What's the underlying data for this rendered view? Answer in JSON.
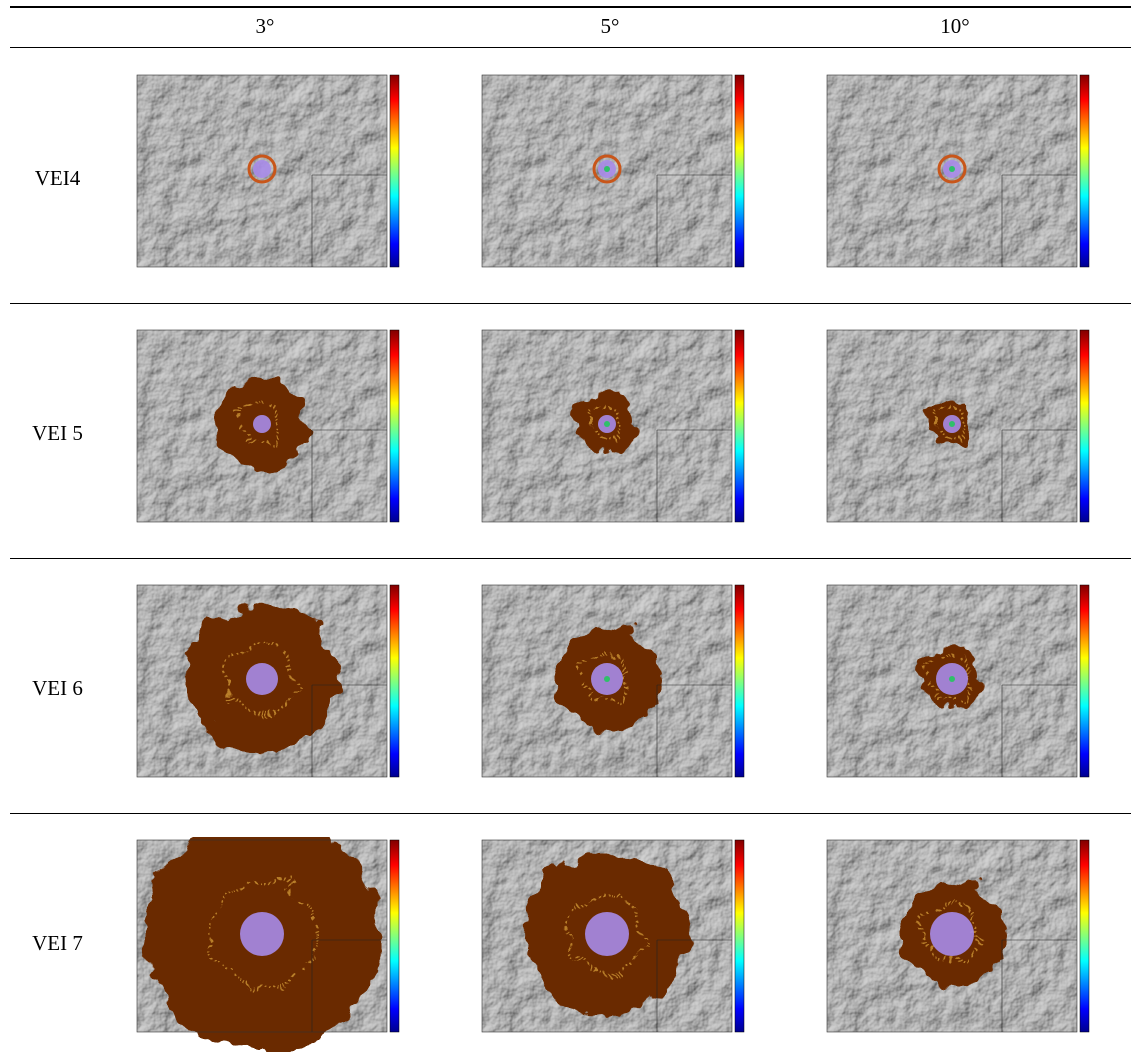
{
  "table": {
    "header": [
      "3°",
      "5°",
      "10°"
    ],
    "rows": [
      "VEI4",
      "VEI 5",
      "VEI 6",
      "VEI 7"
    ]
  }
}
